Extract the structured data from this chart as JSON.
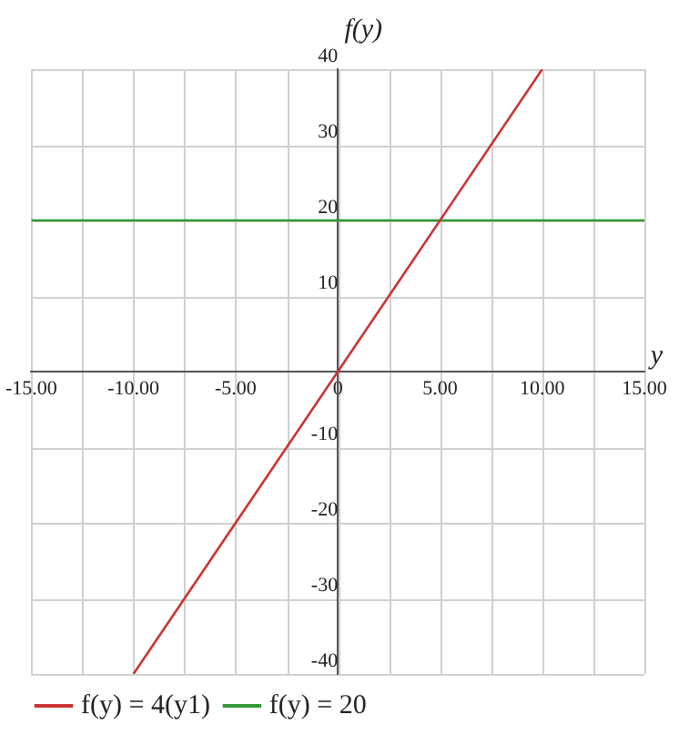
{
  "chart_data": {
    "type": "line",
    "xlabel": "y",
    "ylabel": "f(y)",
    "xlim": [
      -15,
      15
    ],
    "ylim": [
      -40,
      40
    ],
    "xticks": [
      {
        "value": -15,
        "label": "-15.00"
      },
      {
        "value": -12.5,
        "label": null
      },
      {
        "value": -10,
        "label": "-10.00"
      },
      {
        "value": -7.5,
        "label": null
      },
      {
        "value": -5,
        "label": "-5.00"
      },
      {
        "value": -2.5,
        "label": null
      },
      0,
      {
        "value": 2.5,
        "label": null
      },
      {
        "value": 5,
        "label": "5.00"
      },
      {
        "value": 7.5,
        "label": null
      },
      {
        "value": 10,
        "label": "10.00"
      },
      {
        "value": 12.5,
        "label": null
      },
      {
        "value": 15,
        "label": "15.00"
      }
    ],
    "yticks": [
      -40,
      -30,
      -20,
      -10,
      10,
      20,
      30,
      40
    ],
    "series": [
      {
        "name": "f(y) = 4(y1)",
        "color": "#cc3333",
        "x": [
          -10,
          10
        ],
        "values": [
          -40,
          40
        ]
      },
      {
        "name": "f(y) = 20",
        "color": "#339933",
        "x": [
          -15,
          15
        ],
        "values": [
          20,
          20
        ]
      }
    ],
    "grid": true,
    "legend": "bottom left",
    "marker": "none",
    "line_style": "solid"
  }
}
